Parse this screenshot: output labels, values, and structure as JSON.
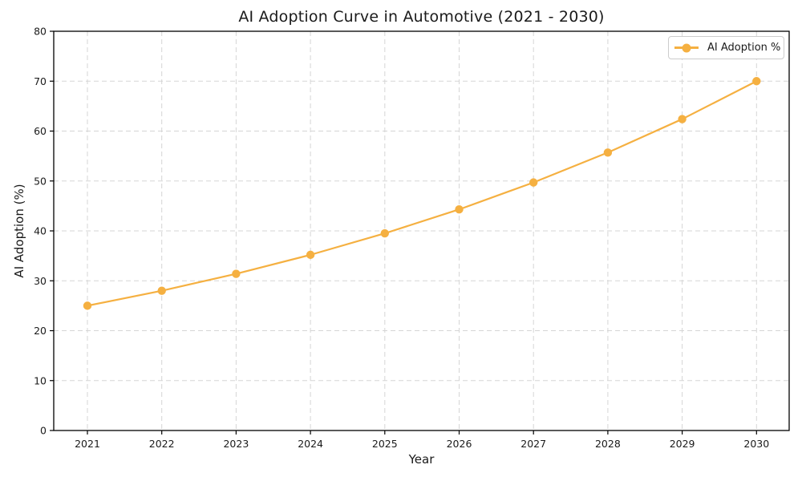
{
  "chart_data": {
    "type": "line",
    "title": "AI Adoption Curve in Automotive (2021 - 2030)",
    "xlabel": "Year",
    "ylabel": "AI Adoption (%)",
    "x": [
      2021,
      2022,
      2023,
      2024,
      2025,
      2026,
      2027,
      2028,
      2029,
      2030
    ],
    "series": [
      {
        "name": "AI Adoption %",
        "values": [
          25.0,
          28.0,
          31.4,
          35.2,
          39.5,
          44.3,
          49.7,
          55.7,
          62.4,
          70.0
        ],
        "color": "#F5B041",
        "marker": "circle"
      }
    ],
    "ylim": [
      0,
      80
    ],
    "yticks": [
      0,
      10,
      20,
      30,
      40,
      50,
      60,
      70,
      80
    ],
    "grid": true,
    "grid_style": "dashed",
    "legend_position": "upper right",
    "colors": {
      "grid": "#d5d5d5",
      "spine": "#000000",
      "tick": "#1a1a1a"
    }
  }
}
